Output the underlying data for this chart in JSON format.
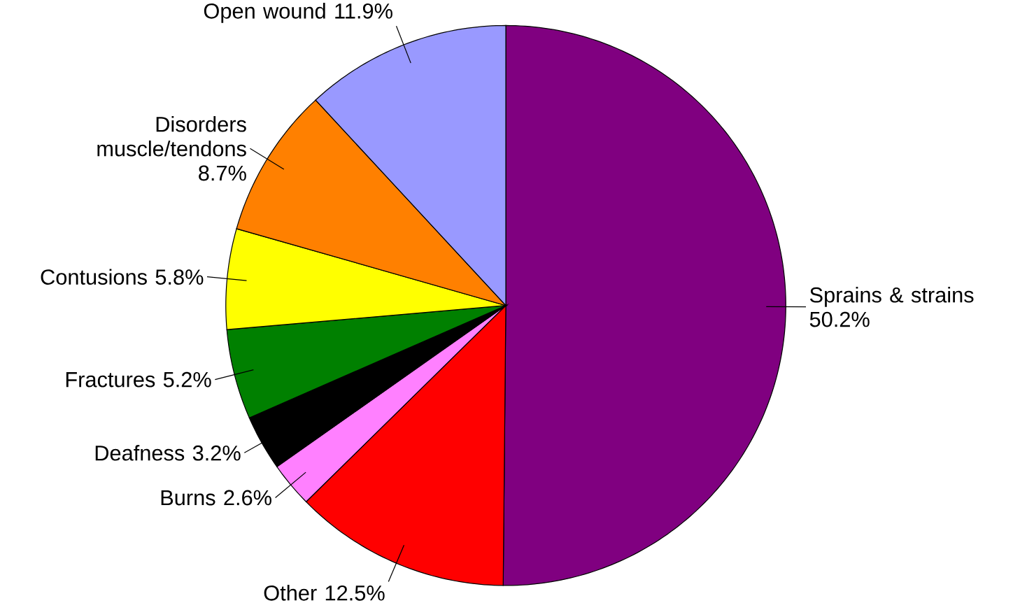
{
  "chart_data": {
    "type": "pie",
    "categories": [
      "Sprains & strains",
      "Other",
      "Burns",
      "Deafness",
      "Fractures",
      "Contusions",
      "Disorders muscle/tendons",
      "Open wound"
    ],
    "values": [
      50.2,
      12.5,
      2.6,
      3.2,
      5.2,
      5.8,
      8.7,
      11.9
    ],
    "value_labels": [
      "50.2%",
      "12.5%",
      "2.6%",
      "3.2%",
      "5.2%",
      "5.8%",
      "8.7%",
      "11.9%"
    ],
    "colors": [
      "#800080",
      "#ff0000",
      "#ff80ff",
      "#000000",
      "#008000",
      "#ffff00",
      "#ff8000",
      "#9999ff"
    ]
  }
}
